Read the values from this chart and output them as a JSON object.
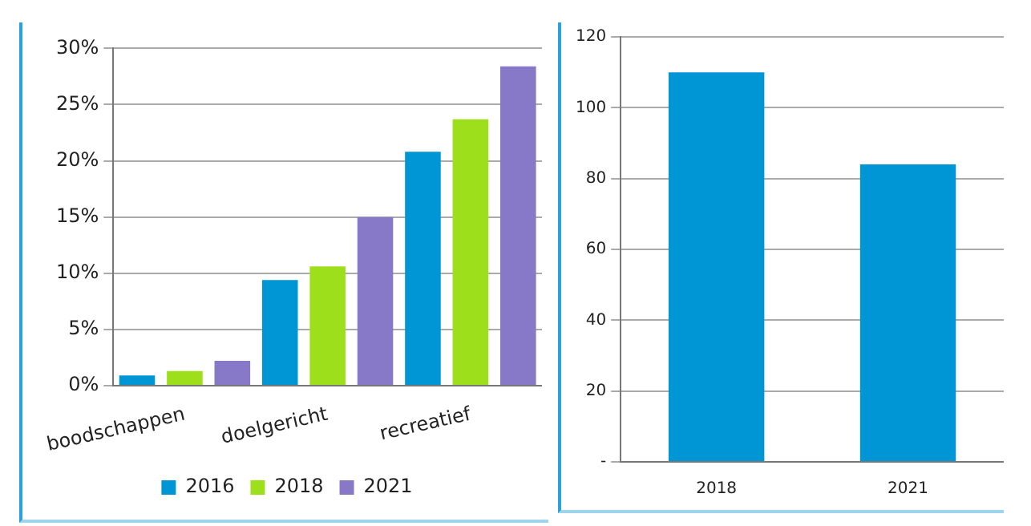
{
  "chart_data": [
    {
      "type": "bar",
      "categories": [
        "boodschappen",
        "doelgericht",
        "recreatief"
      ],
      "series": [
        {
          "name": "2016",
          "color": "#0096d6",
          "values": [
            0.9,
            9.4,
            20.8
          ]
        },
        {
          "name": "2018",
          "color": "#9edf1c",
          "values": [
            1.3,
            10.6,
            23.7
          ]
        },
        {
          "name": "2021",
          "color": "#8878c8",
          "values": [
            2.2,
            15.0,
            28.4
          ]
        }
      ],
      "ylim": [
        0,
        30
      ],
      "yticks": [
        {
          "value": 0,
          "label": "0%"
        },
        {
          "value": 5,
          "label": "5%"
        },
        {
          "value": 10,
          "label": "10%"
        },
        {
          "value": 15,
          "label": "15%"
        },
        {
          "value": 20,
          "label": "20%"
        },
        {
          "value": 25,
          "label": "25%"
        },
        {
          "value": 30,
          "label": "30%"
        }
      ],
      "grid": "y",
      "legend": "bottom"
    },
    {
      "type": "bar",
      "categories": [
        "2018",
        "2021"
      ],
      "values": [
        110,
        84
      ],
      "color": "#0096d6",
      "ylim": [
        0,
        120
      ],
      "yticks": [
        {
          "value": 0,
          "label": "-"
        },
        20,
        40,
        60,
        80,
        100,
        120
      ],
      "grid": "y",
      "legend": false
    }
  ]
}
